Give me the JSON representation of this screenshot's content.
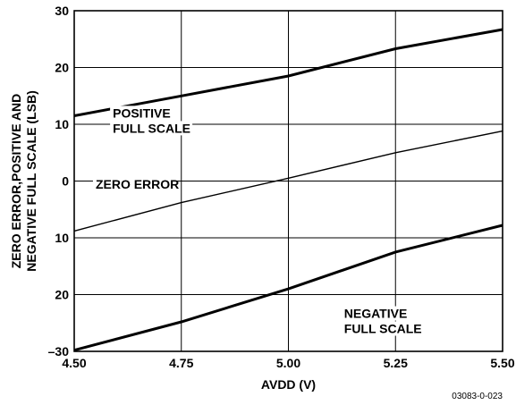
{
  "chart_data": {
    "type": "line",
    "title": "",
    "xlabel": "AVDD (V)",
    "ylabel_lines": [
      "ZERO ERROR,POSITIVE AND",
      "NEGATIVE FULL SCALE (LSB)"
    ],
    "xlim": [
      4.5,
      5.5
    ],
    "ylim": [
      -30,
      30
    ],
    "x_ticks": [
      4.5,
      4.75,
      5.0,
      5.25,
      5.5
    ],
    "x_tick_labels": [
      "4.50",
      "4.75",
      "5.00",
      "5.25",
      "5.50"
    ],
    "y_ticks": [
      30,
      20,
      10,
      0,
      -10,
      -20,
      -30
    ],
    "y_tick_labels": [
      "30",
      "20",
      "10",
      "0",
      "10",
      "20",
      "–30"
    ],
    "grid": true,
    "series": [
      {
        "name": "POSITIVE FULL SCALE",
        "label_lines": [
          "POSITIVE",
          "FULL SCALE"
        ],
        "x": [
          4.5,
          4.75,
          5.0,
          5.25,
          5.5
        ],
        "y": [
          11.5,
          15.0,
          18.5,
          23.3,
          26.7
        ],
        "weight": "thick"
      },
      {
        "name": "ZERO ERROR",
        "label_lines": [
          "ZERO ERROR"
        ],
        "x": [
          4.5,
          4.75,
          5.0,
          5.25,
          5.5
        ],
        "y": [
          -8.8,
          -3.8,
          0.5,
          5.0,
          8.8
        ],
        "weight": "thin"
      },
      {
        "name": "NEGATIVE FULL SCALE",
        "label_lines": [
          "NEGATIVE",
          "FULL SCALE"
        ],
        "x": [
          4.5,
          4.75,
          5.0,
          5.25,
          5.5
        ],
        "y": [
          -29.8,
          -24.8,
          -19.0,
          -12.5,
          -7.8
        ],
        "weight": "thick"
      }
    ],
    "figure_id": "03083-0-023"
  }
}
